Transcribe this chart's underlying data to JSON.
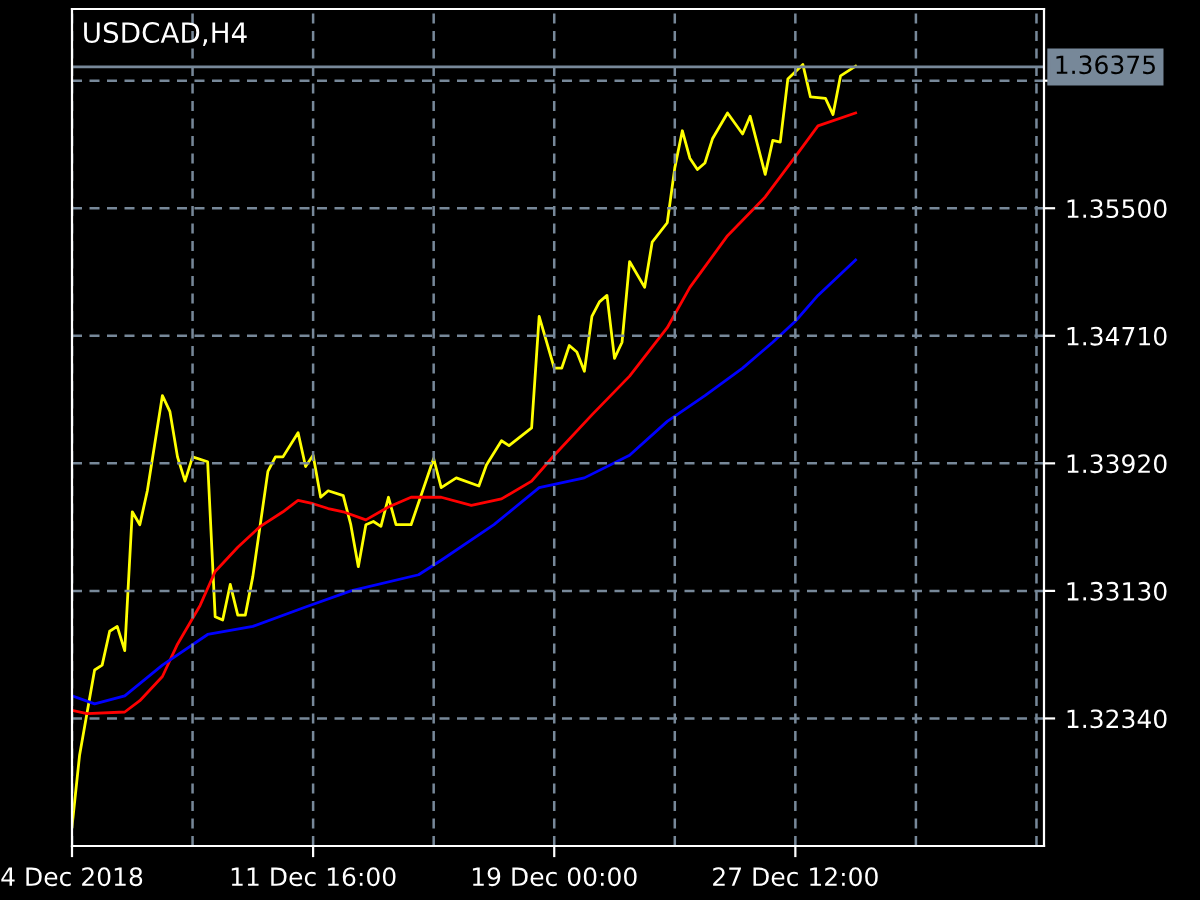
{
  "chart_data": {
    "type": "line",
    "title": "USDCAD,H4",
    "categories": [
      "4 Dec 2018",
      null,
      null,
      null,
      null,
      null,
      null,
      null,
      null,
      null,
      null,
      null,
      null,
      null,
      null,
      null,
      null,
      null,
      null,
      null,
      null,
      null,
      null,
      null,
      null,
      null,
      null,
      null,
      null,
      null,
      null,
      null,
      "11 Dec 16:00",
      null,
      null,
      null,
      null,
      null,
      null,
      null,
      null,
      null,
      null,
      null,
      null,
      null,
      null,
      null,
      null,
      null,
      null,
      null,
      null,
      null,
      null,
      null,
      null,
      null,
      null,
      null,
      null,
      null,
      null,
      null,
      "19 Dec 00:00",
      null,
      null,
      null,
      null,
      null,
      null,
      null,
      null,
      null,
      null,
      null,
      null,
      null,
      null,
      null,
      null,
      null,
      null,
      null,
      null,
      null,
      null,
      null,
      null,
      null,
      null,
      null,
      null,
      null,
      null,
      null,
      "27 Dec 12:00",
      null,
      null,
      null,
      null,
      null,
      null,
      null,
      null,
      null,
      null,
      null,
      null,
      null,
      null,
      null,
      null,
      null,
      null,
      null,
      null,
      null,
      null,
      null,
      null,
      null,
      null,
      null,
      null,
      null,
      null,
      null,
      null,
      null
    ],
    "series": [
      {
        "color": "#ffff00",
        "values": [
          1.3167,
          1.3211,
          null,
          1.3264,
          1.3267,
          1.3288,
          1.3291,
          1.3276,
          1.3362,
          1.3354,
          1.3375,
          null,
          1.3434,
          1.3424,
          1.3396,
          1.3381,
          1.3396,
          null,
          1.3393,
          1.3297,
          1.3295,
          1.3317,
          1.3298,
          1.3298,
          1.3322,
          null,
          1.3387,
          1.3396,
          1.3396,
          null,
          1.3411,
          1.339,
          1.3397,
          1.3371,
          1.3375,
          null,
          1.3372,
          1.3354,
          1.3328,
          1.3354,
          1.3356,
          1.3353,
          1.3371,
          1.3354,
          null,
          1.3354,
          null,
          null,
          1.3395,
          1.3377,
          null,
          1.3383,
          null,
          null,
          1.3378,
          1.3391,
          null,
          1.3406,
          1.3403,
          null,
          null,
          1.3414,
          1.3483,
          null,
          1.3451,
          1.3451,
          1.3465,
          1.3461,
          1.3449,
          1.3483,
          1.3492,
          1.3496,
          1.3457,
          1.3467,
          1.3517,
          null,
          1.3501,
          1.3529,
          null,
          1.3541,
          1.3575,
          1.3598,
          1.3581,
          1.3574,
          1.3578,
          1.3593,
          null,
          1.3609,
          null,
          1.3596,
          1.3607,
          null,
          1.3571,
          1.3592,
          1.3591,
          1.363,
          null,
          1.3639,
          1.3619,
          null,
          1.3618,
          1.3608,
          1.3632,
          null,
          1.3638,
          null,
          null,
          null,
          null,
          null,
          null,
          null,
          null,
          null,
          null,
          null,
          null,
          null,
          null,
          null,
          null,
          null,
          null,
          null,
          null,
          null,
          null,
          null,
          null,
          null
        ]
      },
      {
        "color": "#ff0000",
        "values": [
          1.3239,
          null,
          1.3237,
          null,
          null,
          null,
          null,
          1.3238,
          null,
          1.3245,
          null,
          null,
          1.326,
          null,
          1.328,
          null,
          null,
          1.3304,
          null,
          1.3325,
          null,
          null,
          1.334,
          null,
          null,
          1.3353,
          null,
          null,
          1.3362,
          null,
          1.3369,
          null,
          1.3367,
          null,
          1.3364,
          null,
          1.3362,
          null,
          null,
          1.3357,
          null,
          null,
          1.3365,
          null,
          null,
          1.3371,
          null,
          null,
          null,
          1.3371,
          null,
          null,
          null,
          1.3366,
          null,
          null,
          null,
          1.337,
          null,
          null,
          null,
          1.3381,
          null,
          null,
          1.3397,
          null,
          null,
          null,
          null,
          1.3422,
          null,
          null,
          null,
          null,
          1.3446,
          null,
          null,
          null,
          null,
          1.3476,
          null,
          null,
          1.3501,
          null,
          null,
          null,
          null,
          1.3533,
          null,
          null,
          null,
          null,
          1.3557,
          null,
          null,
          null,
          1.3582,
          null,
          null,
          1.3601,
          null,
          null,
          null,
          null,
          1.3609,
          null,
          null,
          null,
          null,
          null,
          null,
          null,
          null,
          null,
          null,
          null,
          null,
          null,
          null,
          null,
          null,
          null,
          null,
          null,
          null,
          null,
          null,
          null,
          null,
          null
        ]
      },
      {
        "color": "#0000ff",
        "values": [
          1.3248,
          null,
          null,
          1.3243,
          null,
          null,
          null,
          1.3248,
          null,
          null,
          null,
          null,
          1.3267,
          null,
          null,
          null,
          null,
          null,
          1.3286,
          null,
          null,
          null,
          null,
          null,
          1.3291,
          null,
          null,
          null,
          null,
          null,
          null,
          1.3303,
          null,
          null,
          null,
          null,
          null,
          1.3313,
          null,
          null,
          null,
          null,
          null,
          null,
          null,
          null,
          1.3323,
          null,
          null,
          1.3332,
          null,
          null,
          null,
          null,
          null,
          null,
          1.3354,
          null,
          null,
          null,
          null,
          null,
          1.3377,
          null,
          null,
          null,
          null,
          null,
          1.3383,
          null,
          null,
          null,
          null,
          null,
          1.3397,
          null,
          null,
          null,
          null,
          1.3418,
          null,
          null,
          null,
          null,
          1.3434,
          null,
          null,
          null,
          null,
          1.3451,
          null,
          null,
          null,
          1.3467,
          null,
          null,
          1.348,
          null,
          null,
          1.3496,
          null,
          null,
          null,
          null,
          1.3518,
          null,
          null,
          null,
          null,
          null,
          null,
          null,
          null,
          null,
          null,
          null,
          null,
          null,
          null,
          null,
          null,
          null,
          null,
          null,
          null,
          null,
          null,
          null,
          null,
          null
        ]
      }
    ],
    "ylim": [
      1.3155,
      1.36734
    ],
    "yticks": [
      {
        "value": 1.3234,
        "label": "1.32340"
      },
      {
        "value": 1.3313,
        "label": "1.33130"
      },
      {
        "value": 1.3392,
        "label": "1.33920"
      },
      {
        "value": 1.3471,
        "label": "1.34710"
      },
      {
        "value": 1.355,
        "label": "1.35500"
      },
      {
        "value": 1.3629,
        "label": null
      }
    ],
    "ref_lines": [
      {
        "axis": "y",
        "value": 1.36375,
        "label": "1.36375",
        "color": "#778899"
      }
    ],
    "grid": true,
    "line_style": "solid"
  }
}
